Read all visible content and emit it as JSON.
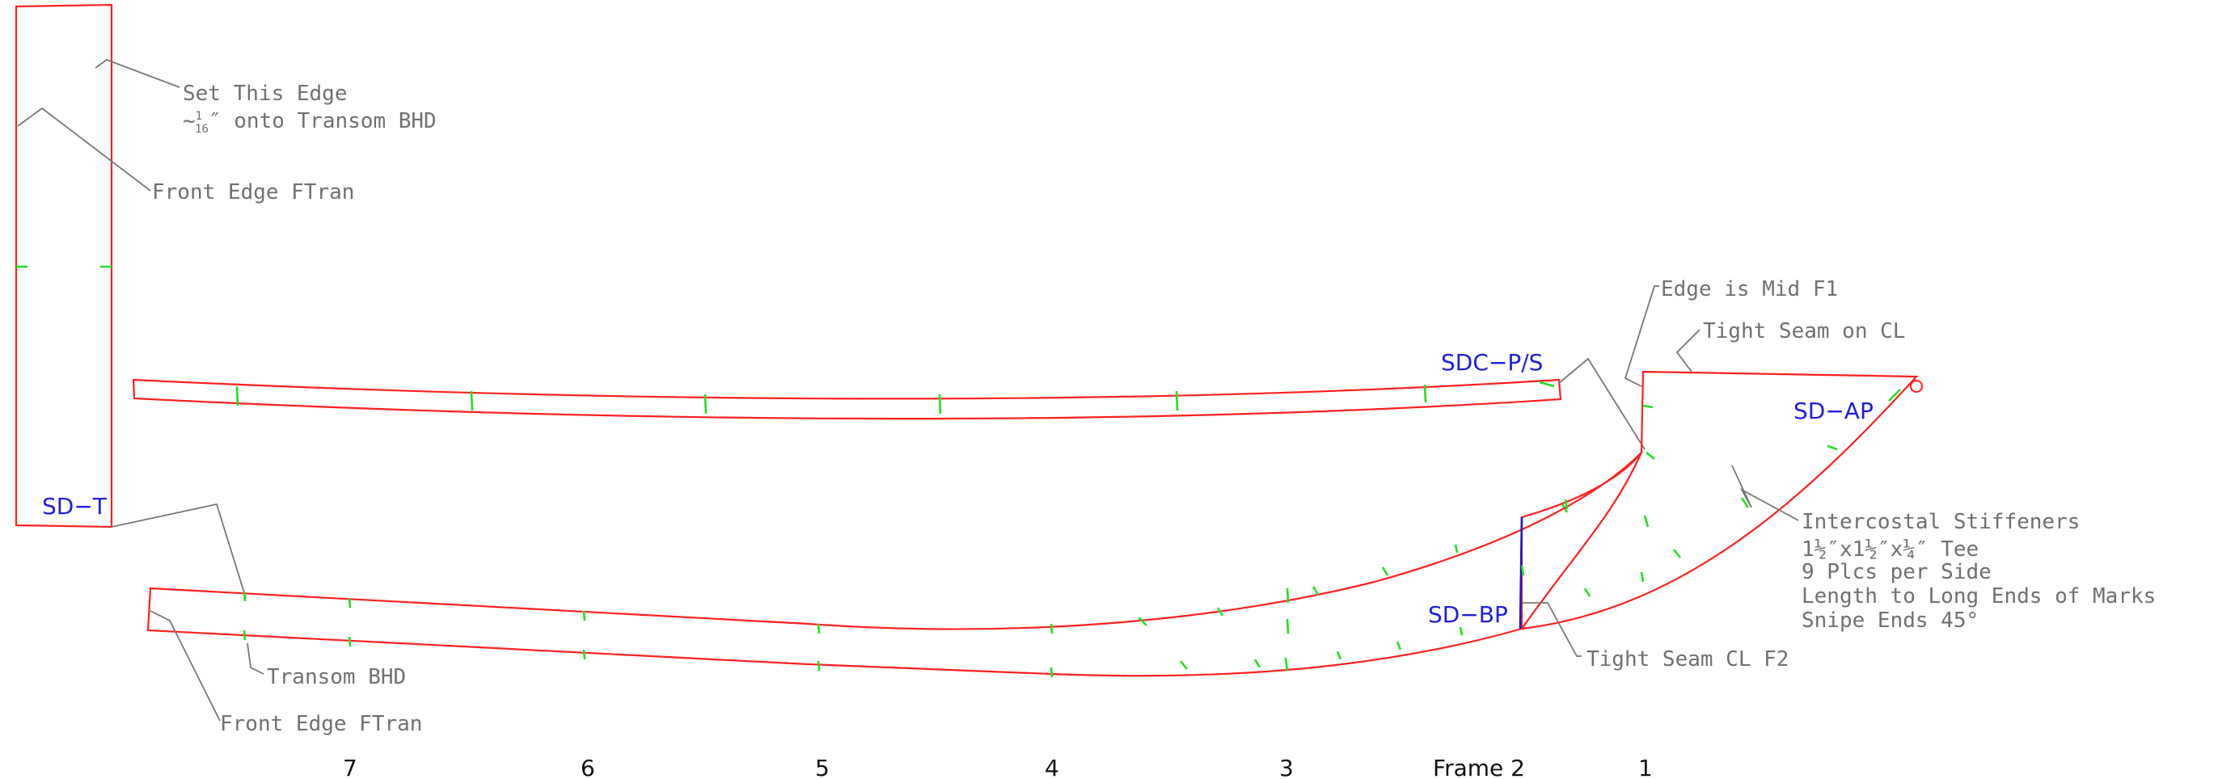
{
  "parts": {
    "sd_t": "SD−T",
    "sdc_ps": "SDC−P/S",
    "sd_ap": "SD−AP",
    "sd_bp": "SD−BP"
  },
  "notes": {
    "set_edge_1": "Set This Edge",
    "set_edge_2_prefix": "~",
    "set_edge_2_num": "1",
    "set_edge_2_den": "16",
    "set_edge_2_suffix": "″ onto Transom BHD",
    "front_edge_upper": "Front Edge FTran",
    "front_edge_lower": "Front Edge FTran",
    "transom_bhd": "Transom BHD",
    "edge_mid_f1": "Edge is Mid F1",
    "tight_seam_cl": "Tight Seam on CL",
    "tight_seam_cl_f2": "Tight Seam CL F2",
    "stiff_1": "Intercostal Stiffeners",
    "stiff_2": "1½″x1½″x¼″ Tee",
    "stiff_3": "9 Plcs per Side",
    "stiff_4": "Length to Long Ends of Marks",
    "stiff_5": "Snipe Ends 45°"
  },
  "frames": {
    "f7": "7",
    "f6": "6",
    "f5": "5",
    "f4": "4",
    "f3": "3",
    "f2": "Frame 2",
    "f1": "1"
  },
  "colors": {
    "outline": "#ff2020",
    "leader": "#777777",
    "marks": "#22e022",
    "seam": "#1a1ad0",
    "part_label": "#1e1ee0"
  }
}
